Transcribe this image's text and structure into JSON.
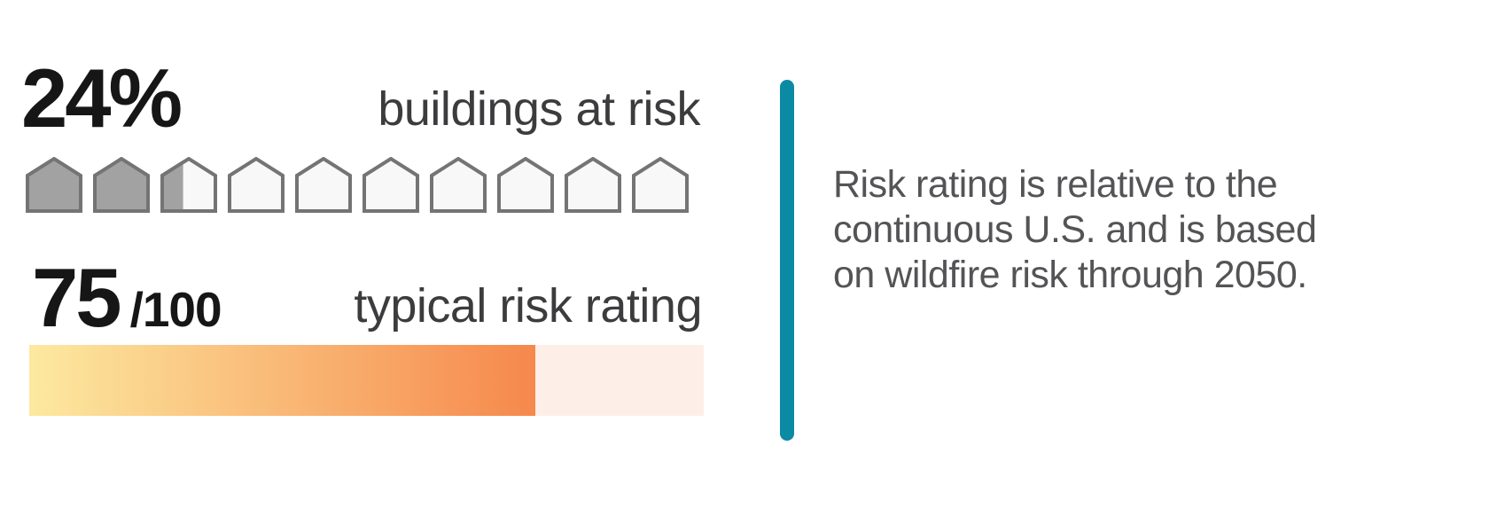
{
  "buildings_at_risk": {
    "value": "24%",
    "label": "buildings at risk",
    "total_houses": 10,
    "filled_houses": 2.4
  },
  "risk_rating": {
    "value": "75",
    "denominator": "/100",
    "label": "typical risk rating",
    "percent": 75,
    "max": 100
  },
  "note": {
    "lines": [
      "Risk rating is relative to the",
      "continuous U.S. and is based",
      "on wildfire risk through 2050."
    ]
  },
  "colors": {
    "number_text": "#161616",
    "label_text": "#3c3c3e",
    "note_text": "#545457",
    "house_filled": "#a2a2a2",
    "house_empty": "#f8f8f8",
    "house_stroke": "#747474",
    "bar_gradient_start": "#fce9a0",
    "bar_gradient_end": "#f6884c",
    "bar_track": "#fdefe8",
    "divider": "#0b8aa4"
  },
  "chart_data": [
    {
      "type": "pictogram-bar",
      "title": "buildings at risk",
      "value": 24,
      "unit": "%",
      "max": 100,
      "icon": "house",
      "icons_total": 10,
      "icons_filled": 2.4,
      "note": "24% shown as 2.4 of 10 house glyphs filled gray"
    },
    {
      "type": "bar",
      "title": "typical risk rating",
      "value": 75,
      "max": 100,
      "note": "horizontal gradient bar (yellow to orange) filled to 75%, pale pink remainder",
      "annotation": "Risk rating is relative to the continuous U.S. and is based on wildfire risk through 2050."
    }
  ]
}
